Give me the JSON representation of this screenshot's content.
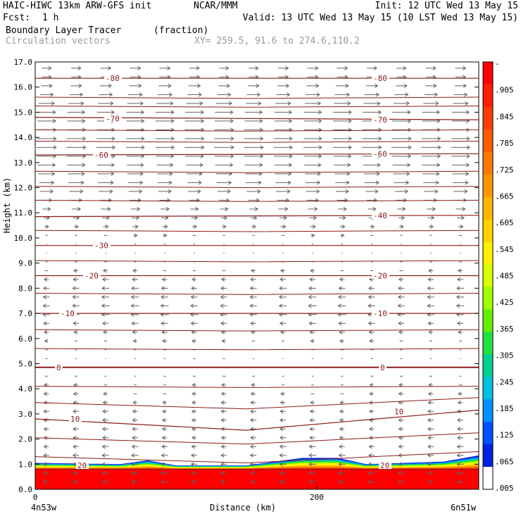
{
  "header": {
    "model": "HAIC-HIWC 13km ARW-GFS init",
    "org": "NCAR/MMM",
    "init": "Init: 12 UTC Wed 13 May 15",
    "fcst_label": "Fcst:",
    "fcst_value": "1 h",
    "valid": "Valid: 13 UTC Wed 13 May 15 (10 LST Wed 13 May 15)",
    "field1_name": "Boundary Layer Tracer",
    "field1_units": "(fraction)",
    "field2_name": "Circulation vectors",
    "xy": "XY= 259.5, 91.6 to 274.6,110.2"
  },
  "colors": {
    "contour": "#8b1a1a",
    "vector": "#606060",
    "frame": "#000000"
  },
  "chart_data": {
    "type": "heatmap",
    "title": "Boundary Layer Tracer",
    "xlabel": "Distance (km)",
    "ylabel": "Height (km)",
    "xlim": [
      0,
      315
    ],
    "ylim": [
      0,
      17
    ],
    "x_ticks": [
      0,
      200
    ],
    "x_end_labels": [
      "4n53w",
      "6n51w"
    ],
    "y_ticks": [
      "0.0",
      "1.0",
      "2.0",
      "3.0",
      "4.0",
      "5.0",
      "6.0",
      "7.0",
      "8.0",
      "9.0",
      "10.0",
      "11.0",
      "12.0",
      "13.0",
      "14.0",
      "15.0",
      "16.0",
      "17.0"
    ],
    "colorbar": {
      "labels": [
        "-",
        ".905",
        ".845",
        ".785",
        ".725",
        ".665",
        ".605",
        ".545",
        ".485",
        ".425",
        ".365",
        ".305",
        ".245",
        ".185",
        ".125",
        ".065",
        ".005"
      ],
      "colors": [
        "#ff0000",
        "#ff1e00",
        "#ff3c00",
        "#ff5a00",
        "#ff7800",
        "#ff9600",
        "#ffb400",
        "#ffd200",
        "#fff000",
        "#d8ff00",
        "#a0ff00",
        "#60f000",
        "#20e040",
        "#00d090",
        "#00c0e0",
        "#0090ff",
        "#0050ff",
        "#0020e0",
        "#ffffff"
      ]
    },
    "tracer_layer": {
      "top_km_at_x": [
        [
          0,
          1.05
        ],
        [
          60,
          1.0
        ],
        [
          80,
          1.15
        ],
        [
          100,
          0.95
        ],
        [
          150,
          0.95
        ],
        [
          190,
          1.25
        ],
        [
          215,
          1.25
        ],
        [
          235,
          1.0
        ],
        [
          290,
          1.1
        ],
        [
          315,
          1.35
        ]
      ],
      "full_tracer_top_km": 0.8
    },
    "contours": [
      {
        "label": "-80",
        "points": [
          [
            0,
            16.35
          ],
          [
            315,
            16.35
          ]
        ]
      },
      {
        "label": "-70",
        "points": [
          [
            0,
            14.8
          ],
          [
            315,
            14.7
          ]
        ]
      },
      {
        "label": "-60",
        "points": [
          [
            0,
            13.3
          ],
          [
            315,
            13.35
          ]
        ]
      },
      {
        "label": "-40",
        "points": [
          [
            0,
            10.85
          ],
          [
            315,
            10.9
          ]
        ]
      },
      {
        "label": "-30",
        "points": [
          [
            0,
            9.7
          ],
          [
            315,
            9.7
          ]
        ]
      },
      {
        "label": "-20",
        "points": [
          [
            0,
            8.5
          ],
          [
            315,
            8.5
          ]
        ]
      },
      {
        "label": "-10",
        "points": [
          [
            0,
            7.0
          ],
          [
            315,
            7.0
          ]
        ]
      },
      {
        "label": "0",
        "points": [
          [
            0,
            4.85
          ],
          [
            315,
            4.85
          ]
        ]
      },
      {
        "label": "10",
        "points": [
          [
            0,
            2.8
          ],
          [
            150,
            2.35
          ],
          [
            315,
            3.15
          ]
        ]
      },
      {
        "label": "20",
        "points": [
          [
            0,
            0.8
          ],
          [
            315,
            0.8
          ]
        ]
      }
    ],
    "contour_labels_shown": [
      {
        "text": "-80",
        "x": 50,
        "y": 16.35
      },
      {
        "text": "-80",
        "x": 240,
        "y": 16.35
      },
      {
        "text": "-70",
        "x": 50,
        "y": 14.75
      },
      {
        "text": "-70",
        "x": 240,
        "y": 14.7
      },
      {
        "text": "-60",
        "x": 42,
        "y": 13.3
      },
      {
        "text": "-60",
        "x": 240,
        "y": 13.35
      },
      {
        "text": "-40",
        "x": 240,
        "y": 10.9
      },
      {
        "text": "-30",
        "x": 42,
        "y": 9.7
      },
      {
        "text": "-20",
        "x": 35,
        "y": 8.5
      },
      {
        "text": "-20",
        "x": 240,
        "y": 8.5
      },
      {
        "text": "-10",
        "x": 18,
        "y": 7.0
      },
      {
        "text": "-10",
        "x": 240,
        "y": 7.0
      },
      {
        "text": "0",
        "x": 15,
        "y": 4.85
      },
      {
        "text": "0",
        "x": 245,
        "y": 4.85
      },
      {
        "text": "10",
        "x": 25,
        "y": 2.8
      },
      {
        "text": "10",
        "x": 255,
        "y": 3.1
      },
      {
        "text": "20",
        "x": 30,
        "y": 0.95
      },
      {
        "text": "20",
        "x": 245,
        "y": 0.95
      }
    ],
    "wind_profile": [
      {
        "z": 16.3,
        "u": 8
      },
      {
        "z": 15.0,
        "u": 14
      },
      {
        "z": 13.5,
        "u": 15
      },
      {
        "z": 12.0,
        "u": 11
      },
      {
        "z": 11.0,
        "u": 6
      },
      {
        "z": 10.0,
        "u": 2
      },
      {
        "z": 9.0,
        "u": -2
      },
      {
        "z": 8.0,
        "u": -5
      },
      {
        "z": 7.0,
        "u": -6
      },
      {
        "z": 6.0,
        "u": -3
      },
      {
        "z": 5.0,
        "u": -1
      },
      {
        "z": 4.0,
        "u": -3
      },
      {
        "z": 3.0,
        "u": -4
      },
      {
        "z": 2.0,
        "u": -4
      },
      {
        "z": 1.2,
        "u": -5
      },
      {
        "z": 0.4,
        "u": -5
      }
    ],
    "grid": false,
    "legend": "colorbar-right"
  }
}
